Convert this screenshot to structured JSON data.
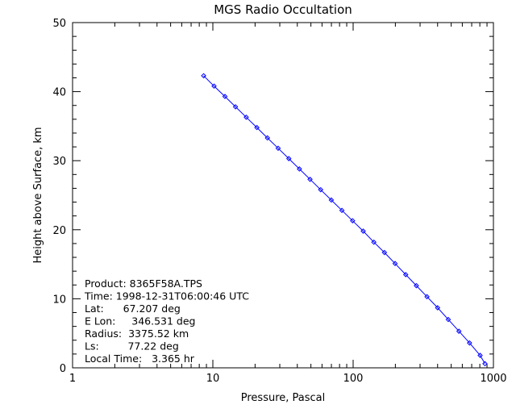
{
  "chart_data": {
    "type": "scatter",
    "title": "MGS Radio Occultation",
    "xlabel": "Pressure, Pascal",
    "ylabel": "Height above Surface, km",
    "xscale": "log",
    "xlim": [
      1,
      1000
    ],
    "ylim": [
      0,
      50
    ],
    "x_ticks": [
      1,
      10,
      100,
      1000
    ],
    "x_tick_labels": [
      "1",
      "10",
      "100",
      "1000"
    ],
    "y_ticks": [
      0,
      10,
      20,
      30,
      40,
      50
    ],
    "y_tick_labels": [
      "0",
      "10",
      "20",
      "30",
      "40",
      "50"
    ],
    "grid": false,
    "series": [
      {
        "color": "#0000ff",
        "marker": "diamond",
        "line": true,
        "x": [
          8.6,
          10.2,
          12.2,
          14.5,
          17.3,
          20.6,
          24.5,
          29.2,
          34.8,
          41.4,
          49.3,
          58.7,
          69.9,
          83.2,
          99.1,
          118.0,
          140.5,
          167.2,
          199.1,
          237.1,
          282.3,
          336.1,
          400.2,
          476.5,
          567.4,
          675.5,
          804.3,
          870.0
        ],
        "y": [
          42.3,
          40.8,
          39.3,
          37.8,
          36.3,
          34.8,
          33.3,
          31.8,
          30.3,
          28.8,
          27.3,
          25.8,
          24.3,
          22.8,
          21.3,
          19.8,
          18.2,
          16.7,
          15.1,
          13.5,
          11.9,
          10.3,
          8.7,
          7.0,
          5.3,
          3.6,
          1.8,
          0.6
        ]
      }
    ],
    "annotations": [
      "Product: 8365F58A.TPS",
      "Time: 1998-12-31T06:00:46 UTC",
      "Lat:      67.207 deg",
      "E Lon:     346.531 deg",
      "Radius:  3375.52 km",
      "Ls:         77.22 deg",
      "Local Time:   3.365 hr"
    ]
  }
}
